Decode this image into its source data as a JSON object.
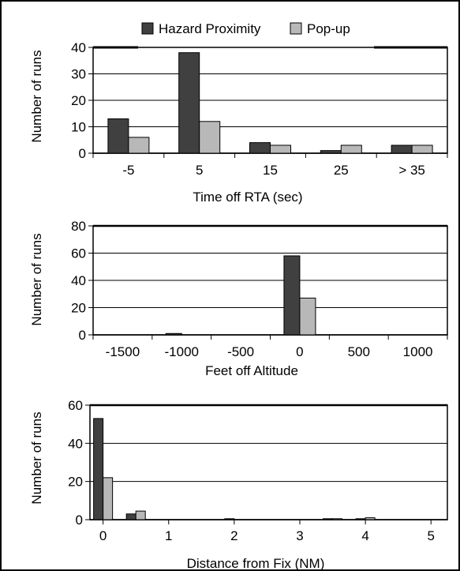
{
  "legend": {
    "items": [
      {
        "label": "Hazard Proximity",
        "color": "#404040"
      },
      {
        "label": "Pop-up",
        "color": "#b8b8b8"
      }
    ]
  },
  "chart_data": [
    {
      "type": "bar",
      "title": "",
      "xlabel": "Time off RTA (sec)",
      "ylabel": "Number of runs",
      "ylim": [
        0,
        40
      ],
      "yticks": [
        0,
        10,
        20,
        30,
        40
      ],
      "grid": true,
      "legend_position": "top-center",
      "categories": [
        "-5",
        "5",
        "15",
        "25",
        "> 35"
      ],
      "series": [
        {
          "name": "Hazard Proximity",
          "values": [
            13,
            38,
            4,
            1,
            3
          ]
        },
        {
          "name": "Pop-up",
          "values": [
            6,
            12,
            3,
            3,
            3
          ]
        }
      ]
    },
    {
      "type": "bar",
      "title": "",
      "xlabel": "Feet off Altitude",
      "ylabel": "Number of runs",
      "ylim": [
        0,
        80
      ],
      "yticks": [
        0,
        20,
        40,
        60,
        80
      ],
      "grid": true,
      "categories": [
        "-1500",
        "-1000",
        "-500",
        "0",
        "500",
        "1000"
      ],
      "series": [
        {
          "name": "Hazard Proximity",
          "values": [
            0,
            1,
            0,
            58,
            0,
            0
          ]
        },
        {
          "name": "Pop-up",
          "values": [
            0,
            0,
            0,
            27,
            0,
            0
          ]
        }
      ]
    },
    {
      "type": "bar",
      "title": "",
      "xlabel": "Distance from Fix (NM)",
      "ylabel": "Number of runs",
      "ylim": [
        0,
        60
      ],
      "yticks": [
        0,
        20,
        40,
        60
      ],
      "grid": true,
      "xticks": [
        "0",
        "1",
        "2",
        "3",
        "4",
        "5"
      ],
      "x": [
        0,
        0.5,
        1,
        1.5,
        2,
        2.5,
        3,
        3.5,
        4,
        4.5,
        5
      ],
      "series": [
        {
          "name": "Hazard Proximity",
          "values": [
            53,
            3,
            0,
            0,
            0.5,
            0,
            0,
            0.5,
            0.5,
            0,
            0
          ]
        },
        {
          "name": "Pop-up",
          "values": [
            22,
            4.5,
            0,
            0,
            0,
            0,
            0,
            0.5,
            1,
            0,
            0
          ]
        }
      ]
    }
  ]
}
